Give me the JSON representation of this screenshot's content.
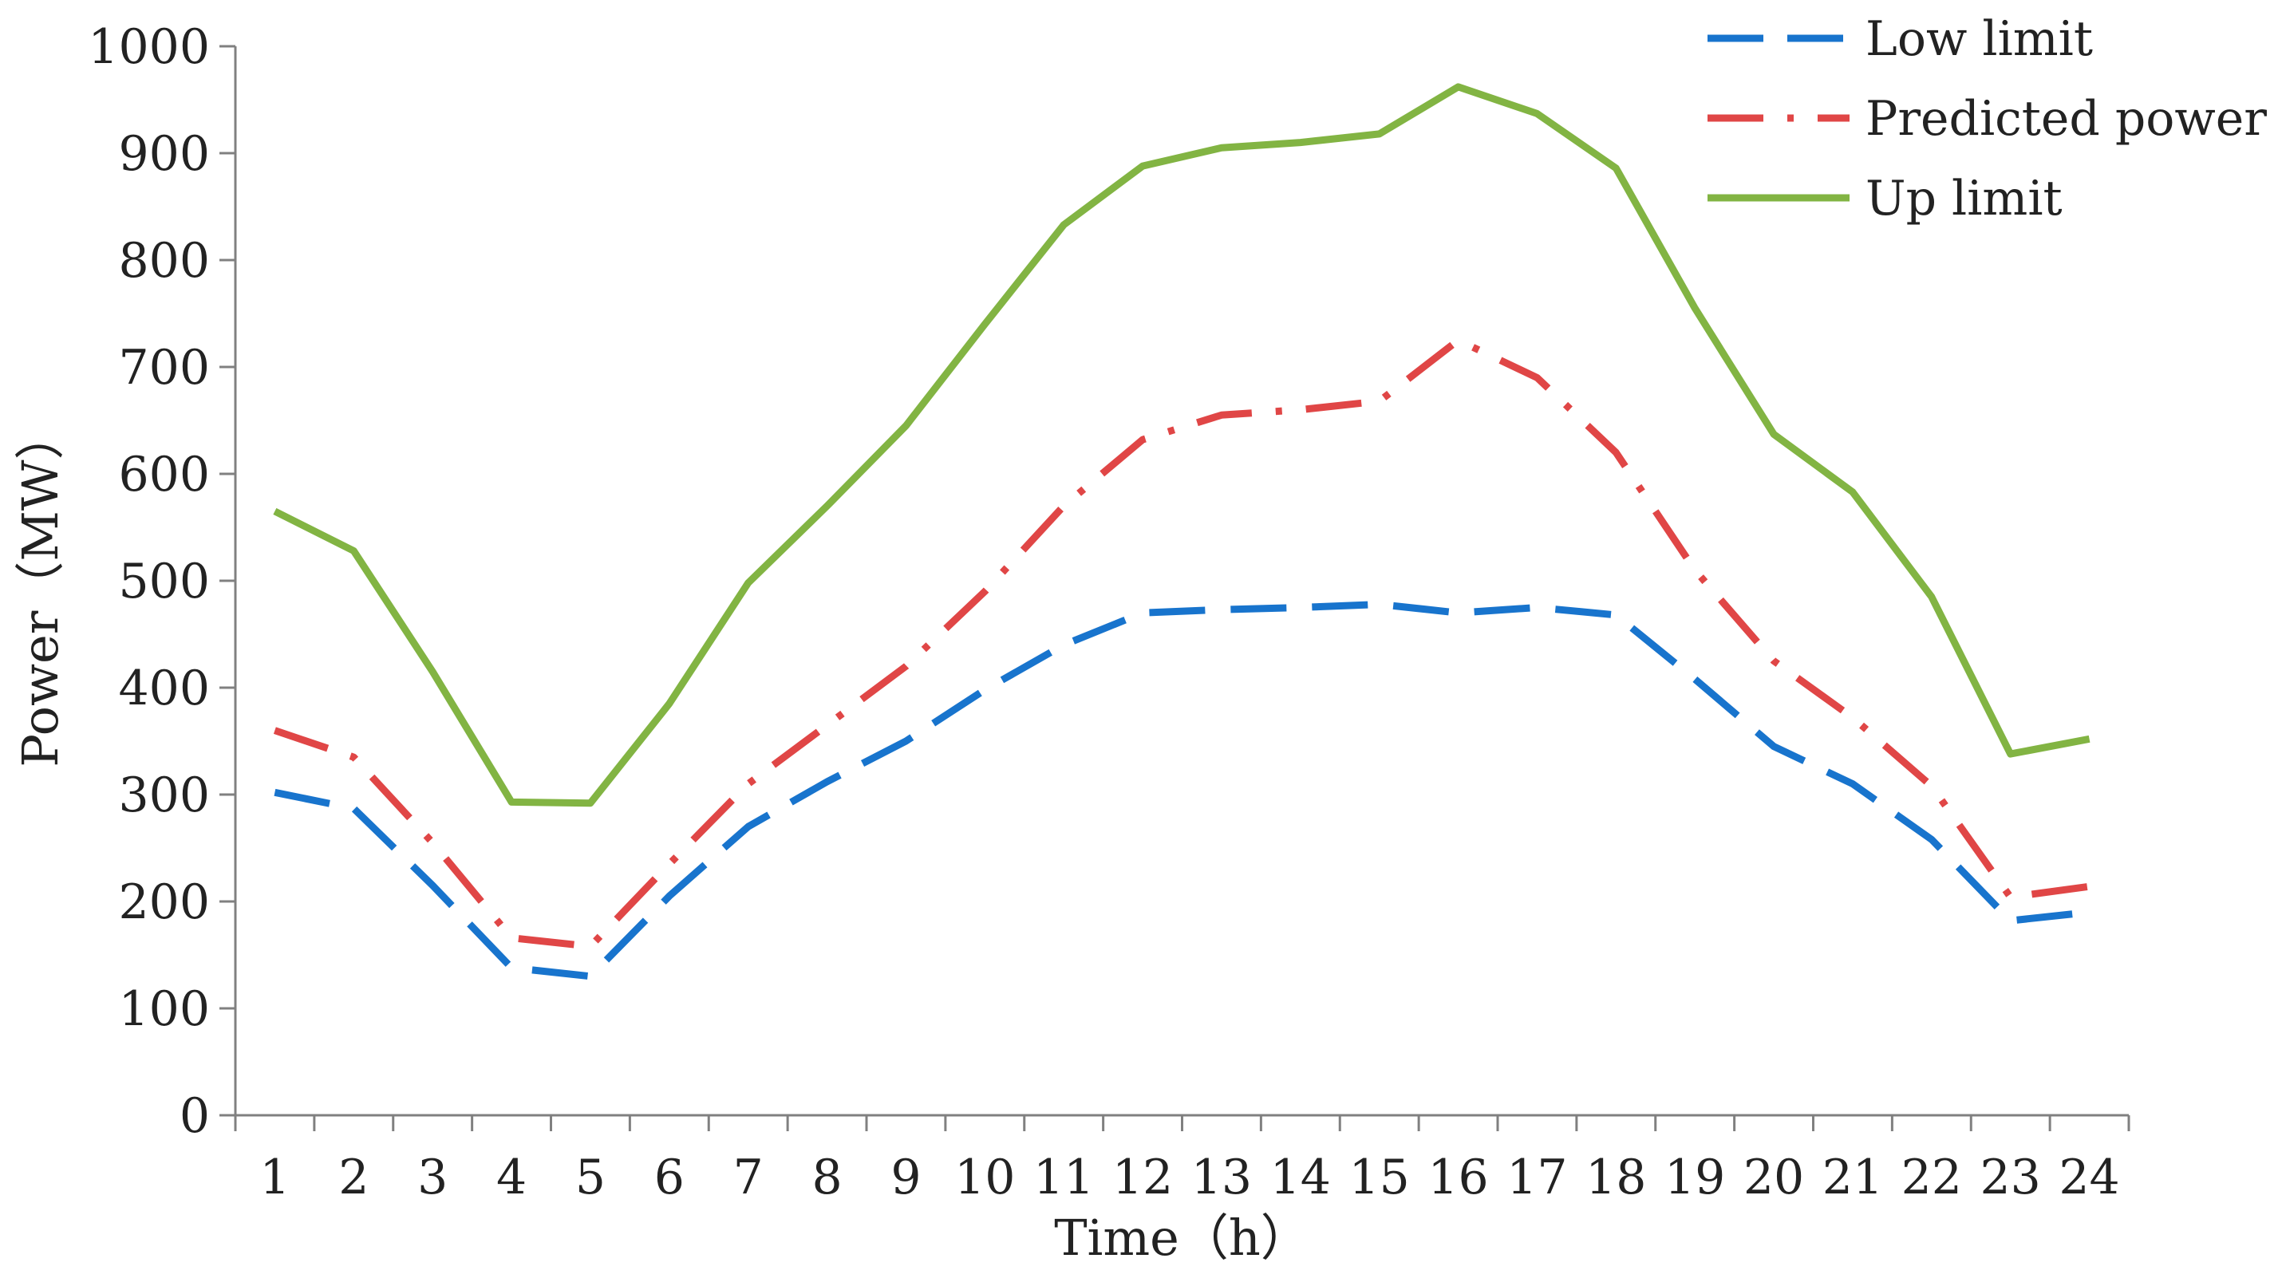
{
  "chart_data": {
    "type": "line",
    "title": "",
    "xlabel": "Time（h）",
    "ylabel": "Power（MW）",
    "ylim": [
      0,
      1000
    ],
    "yticks": [
      0,
      100,
      200,
      300,
      400,
      500,
      600,
      700,
      800,
      900,
      1000
    ],
    "categories": [
      "1",
      "2",
      "3",
      "4",
      "5",
      "6",
      "7",
      "8",
      "9",
      "10",
      "11",
      "12",
      "13",
      "14",
      "15",
      "16",
      "17",
      "18",
      "19",
      "20",
      "21",
      "22",
      "23",
      "24"
    ],
    "grid": false,
    "legend_position": "top-right",
    "series": [
      {
        "name": "Low limit",
        "color": "#1874CD",
        "style": "dashed",
        "values": [
          302,
          287,
          215,
          138,
          130,
          205,
          270,
          312,
          350,
          398,
          440,
          470,
          473,
          475,
          478,
          470,
          475,
          468,
          408,
          345,
          310,
          258,
          182,
          190
        ]
      },
      {
        "name": "Predicted power",
        "color": "#E04646",
        "style": "dash-dot",
        "values": [
          360,
          335,
          255,
          166,
          158,
          235,
          310,
          365,
          420,
          490,
          570,
          632,
          655,
          660,
          668,
          725,
          690,
          620,
          510,
          425,
          372,
          308,
          204,
          214
        ]
      },
      {
        "name": "Up limit",
        "color": "#82B443",
        "style": "solid",
        "values": [
          565,
          528,
          415,
          293,
          292,
          385,
          498,
          570,
          645,
          740,
          833,
          888,
          905,
          910,
          918,
          962,
          937,
          886,
          755,
          637,
          583,
          485,
          338,
          352
        ]
      }
    ]
  }
}
